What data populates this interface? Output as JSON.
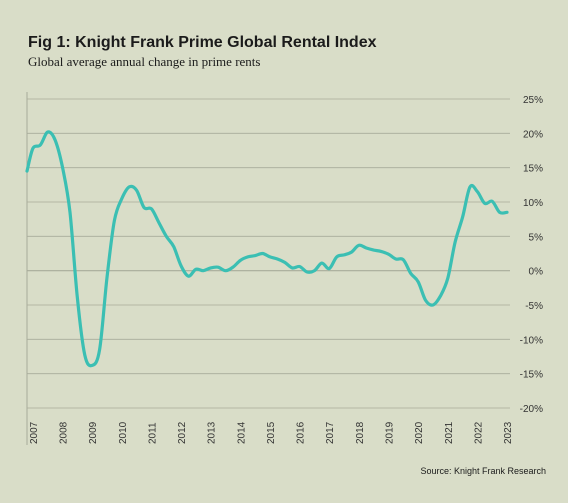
{
  "title": "Fig 1: Knight Frank Prime Global Rental Index",
  "subtitle": "Global average annual change in prime rents",
  "source": "Source: Knight Frank Research",
  "colors": {
    "background": "#d9ddc8",
    "line": "#3bbfb3",
    "grid": "#a8ab9a",
    "text": "#1b1b1b"
  },
  "chart_data": {
    "type": "line",
    "title": "Fig 1: Knight Frank Prime Global Rental Index",
    "subtitle": "Global average annual change in prime rents",
    "xlabel": "",
    "ylabel": "",
    "ylim": [
      -20,
      25
    ],
    "xlim": [
      2007,
      2023
    ],
    "y_ticks": [
      "25%",
      "20%",
      "15%",
      "10%",
      "5%",
      "0%",
      "-5%",
      "-10%",
      "-15%",
      "-20%"
    ],
    "y_tick_values": [
      25,
      20,
      15,
      10,
      5,
      0,
      -5,
      -10,
      -15,
      -20
    ],
    "x_ticks": [
      "2007",
      "2008",
      "2009",
      "2010",
      "2011",
      "2012",
      "2013",
      "2014",
      "2015",
      "2016",
      "2017",
      "2018",
      "2019",
      "2020",
      "2021",
      "2022",
      "2023"
    ],
    "x_tick_values": [
      2007,
      2008,
      2009,
      2010,
      2011,
      2012,
      2013,
      2014,
      2015,
      2016,
      2017,
      2018,
      2019,
      2020,
      2021,
      2022,
      2023
    ],
    "grid": "horizontal",
    "series": [
      {
        "x": [
          2006.8,
          2007.0,
          2007.25,
          2007.5,
          2007.75,
          2008.0,
          2008.25,
          2008.5,
          2008.75,
          2009.0,
          2009.25,
          2009.5,
          2009.75,
          2010.0,
          2010.25,
          2010.5,
          2010.75,
          2011.0,
          2011.25,
          2011.5,
          2011.75,
          2012.0,
          2012.25,
          2012.5,
          2012.75,
          2013.0,
          2013.25,
          2013.5,
          2013.75,
          2014.0,
          2014.25,
          2014.5,
          2014.75,
          2015.0,
          2015.25,
          2015.5,
          2015.75,
          2016.0,
          2016.25,
          2016.5,
          2016.75,
          2017.0,
          2017.25,
          2017.5,
          2017.75,
          2018.0,
          2018.25,
          2018.5,
          2018.75,
          2019.0,
          2019.25,
          2019.5,
          2019.75,
          2020.0,
          2020.25,
          2020.5,
          2020.75,
          2021.0,
          2021.25,
          2021.5,
          2021.75,
          2022.0,
          2022.25,
          2022.5,
          2022.75,
          2023.0
        ],
        "values": [
          14.5,
          17.8,
          18.3,
          20.2,
          19.0,
          15.0,
          8.5,
          -4.0,
          -12.3,
          -13.8,
          -11.5,
          -1.0,
          7.3,
          10.5,
          12.2,
          11.7,
          9.2,
          9.0,
          7.0,
          5.0,
          3.5,
          0.7,
          -0.8,
          0.2,
          0.0,
          0.4,
          0.5,
          0.0,
          0.5,
          1.5,
          2.0,
          2.2,
          2.5,
          2.0,
          1.7,
          1.2,
          0.4,
          0.6,
          -0.2,
          0.0,
          1.1,
          0.3,
          2.0,
          2.3,
          2.7,
          3.7,
          3.3,
          3.0,
          2.8,
          2.4,
          1.7,
          1.6,
          -0.4,
          -1.6,
          -4.3,
          -5.0,
          -3.7,
          -1.1,
          4.2,
          7.8,
          12.2,
          11.5,
          9.8,
          10.1,
          8.5,
          8.5
        ]
      }
    ]
  }
}
